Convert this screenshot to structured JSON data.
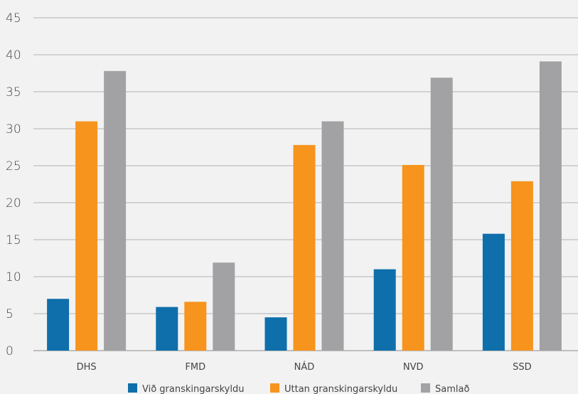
{
  "chart_data": {
    "type": "bar",
    "categories": [
      "DHS",
      "FMD",
      "NÁD",
      "NVD",
      "SSD"
    ],
    "series": [
      {
        "name": "Við granskingarskyldu",
        "color": "#0f6fab",
        "values": [
          7,
          5.9,
          4.5,
          11,
          15.8
        ]
      },
      {
        "name": "Uttan granskingarskyldu",
        "color": "#f7941d",
        "values": [
          31,
          6.6,
          27.8,
          25.1,
          22.9
        ]
      },
      {
        "name": "Samlað",
        "color": "#a2a2a4",
        "values": [
          37.8,
          11.9,
          31,
          36.9,
          39.1
        ]
      }
    ],
    "ylim": [
      0,
      45
    ],
    "yticks": [
      0,
      5,
      10,
      15,
      20,
      25,
      30,
      35,
      40,
      45
    ],
    "grid": true,
    "legend_position": "bottom"
  }
}
